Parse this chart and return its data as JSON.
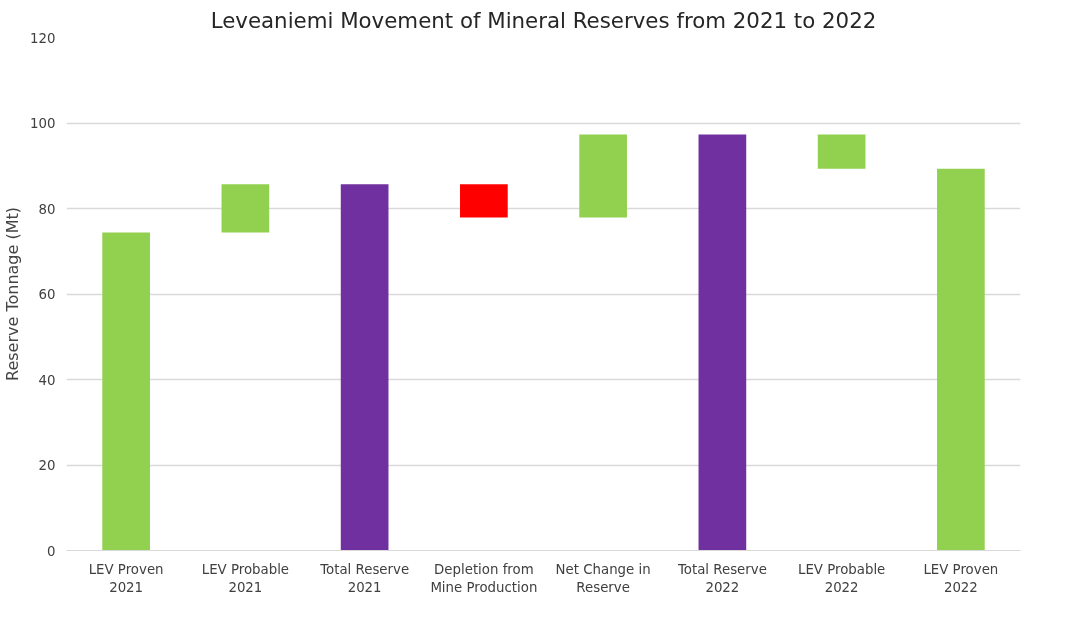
{
  "chart_data": {
    "type": "bar",
    "title": "Leveaniemi Movement of Mineral Reserves from 2021 to 2022",
    "ylabel": "Reserve Tonnage (Mt)",
    "categories": [
      "LEV Proven 2021",
      "LEV Probable 2021",
      "Total Reserve 2021",
      "Depletion from Mine Production",
      "Net Change in Reserve",
      "Total Reserve 2022",
      "LEV Probable 2022",
      "LEV Proven 2022"
    ],
    "values": [
      74.4,
      11.3,
      85.7,
      -7.8,
      19.4,
      97.3,
      8.0,
      89.3
    ],
    "base": [
      0,
      74.4,
      0,
      85.7,
      77.9,
      0,
      89.3,
      0
    ],
    "colors": [
      "#92d050",
      "#92d050",
      "#7030a0",
      "#ff0000",
      "#92d050",
      "#7030a0",
      "#92d050",
      "#92d050"
    ],
    "ylim": [
      0,
      120
    ],
    "yticks": [
      0,
      20,
      40,
      60,
      80,
      100,
      120
    ],
    "grid": "y"
  }
}
